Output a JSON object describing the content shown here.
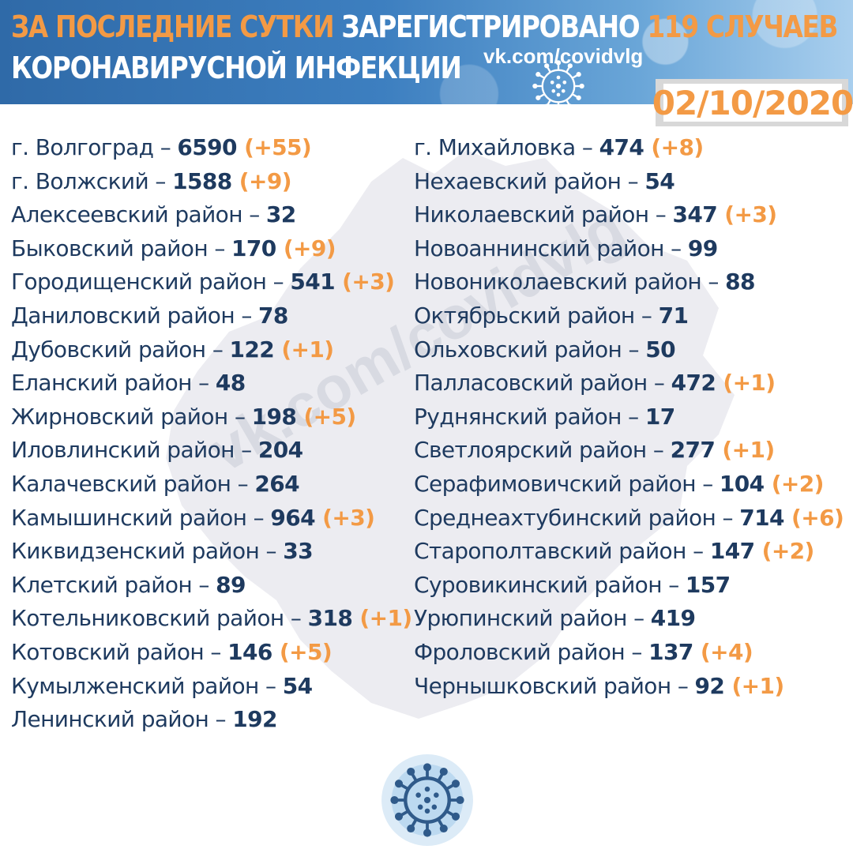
{
  "header": {
    "title_part1": "ЗА ПОСЛЕДНИЕ СУТКИ",
    "title_part2": " ЗАРЕГИСТРИРОВАНО ",
    "title_part3": "119 СЛУЧАЕВ",
    "title_line2": "КОРОНАВИРУСНОЙ ИНФЕКЦИИ",
    "link": "vk.com/covidvlg",
    "date": "02/10/2020"
  },
  "watermark": "vk.com/covidvlg",
  "icons": {
    "header": "coronavirus-icon",
    "bottom": "coronavirus-icon"
  },
  "colors": {
    "accent": "#f39a45",
    "text": "#1e3a5f",
    "header_bg": "#3d7fc0"
  },
  "left_column": [
    {
      "name": "г. Волгоград – ",
      "count": "6590",
      "inc": "(+55)"
    },
    {
      "name": "г. Волжский – ",
      "count": "1588",
      "inc": "(+9)"
    },
    {
      "name": "Алексеевский район – ",
      "count": "32",
      "inc": ""
    },
    {
      "name": "Быковский район – ",
      "count": "170",
      "inc": "(+9)"
    },
    {
      "name": "Городищенский район – ",
      "count": "541",
      "inc": "(+3)"
    },
    {
      "name": "Даниловский район – ",
      "count": "78",
      "inc": ""
    },
    {
      "name": "Дубовский район – ",
      "count": "122",
      "inc": "(+1)"
    },
    {
      "name": "Еланский район – ",
      "count": "48",
      "inc": ""
    },
    {
      "name": "Жирновский район – ",
      "count": "198",
      "inc": "(+5)"
    },
    {
      "name": "Иловлинский район – ",
      "count": "204",
      "inc": ""
    },
    {
      "name": "Калачевский район – ",
      "count": "264",
      "inc": ""
    },
    {
      "name": "Камышинский район – ",
      "count": "964",
      "inc": "(+3)"
    },
    {
      "name": "Киквидзенский район – ",
      "count": "33",
      "inc": ""
    },
    {
      "name": "Клетский район – ",
      "count": "89",
      "inc": ""
    },
    {
      "name": "Котельниковский район – ",
      "count": "318",
      "inc": "(+1)"
    },
    {
      "name": "Котовский район – ",
      "count": "146",
      "inc": "(+5)"
    },
    {
      "name": "Кумылженский район – ",
      "count": "54",
      "inc": ""
    },
    {
      "name": "Ленинский район – ",
      "count": "192",
      "inc": ""
    }
  ],
  "right_column": [
    {
      "name": "г. Михайловка – ",
      "count": "474",
      "inc": "(+8)"
    },
    {
      "name": "Нехаевский район – ",
      "count": "54",
      "inc": ""
    },
    {
      "name": "Николаевский район – ",
      "count": "347",
      "inc": "(+3)"
    },
    {
      "name": "Новоаннинский район – ",
      "count": "99",
      "inc": ""
    },
    {
      "name": "Новониколаевский район – ",
      "count": "88",
      "inc": ""
    },
    {
      "name": "Октябрьский район – ",
      "count": "71",
      "inc": ""
    },
    {
      "name": "Ольховский район – ",
      "count": "50",
      "inc": ""
    },
    {
      "name": "Палласовский район – ",
      "count": "472",
      "inc": "(+1)"
    },
    {
      "name": "Руднянский район – ",
      "count": "17",
      "inc": ""
    },
    {
      "name": "Светлоярский район – ",
      "count": "277",
      "inc": "(+1)"
    },
    {
      "name": "Серафимовичский район – ",
      "count": "104",
      "inc": "(+2)"
    },
    {
      "name": "Среднеахтубинский район – ",
      "count": "714",
      "inc": "(+6)"
    },
    {
      "name": "Старополтавский район – ",
      "count": "147",
      "inc": "(+2)"
    },
    {
      "name": "Суровикинский район – ",
      "count": "157",
      "inc": ""
    },
    {
      "name": "Урюпинский район – ",
      "count": "419",
      "inc": ""
    },
    {
      "name": "Фроловский район  – ",
      "count": "137",
      "inc": "(+4)"
    },
    {
      "name": "Чернышковский район – ",
      "count": "92",
      "inc": "(+1)"
    }
  ]
}
